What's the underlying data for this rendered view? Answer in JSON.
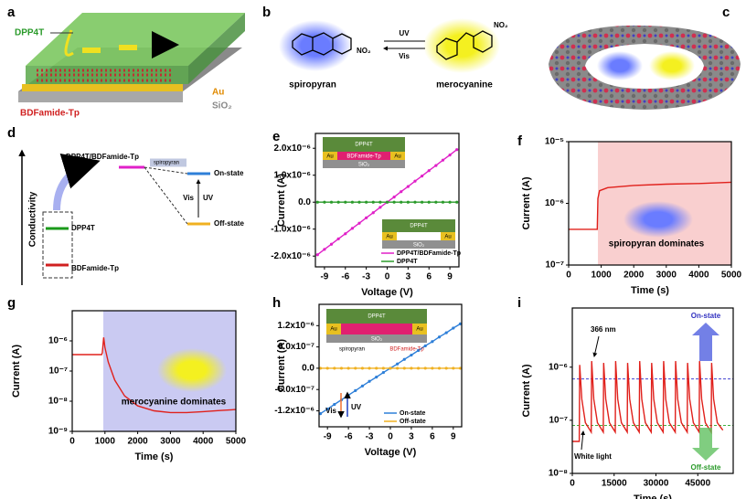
{
  "panels": {
    "a": {
      "label": "a",
      "dpp4t": "DPP4T",
      "au": "Au",
      "bdfamide": "BDFamide-Tp",
      "sio2": "SiO₂"
    },
    "b": {
      "label": "b",
      "spiropyran": "spiropyran",
      "merocyanine": "merocyanine",
      "uv": "UV",
      "vis": "Vis",
      "no2_left": "NO₂",
      "no2_right": "NO₂"
    },
    "c": {
      "label": "c"
    },
    "d": {
      "label": "d",
      "y_label": "Conductivity",
      "composite": "DPP4T/BDFamide-Tp",
      "spiropyran": "spiropyran",
      "on": "On-state",
      "off": "Off-state",
      "vis": "Vis",
      "uv": "UV",
      "dpp4t": "DPP4T",
      "bdfamide": "BDFamide-Tp"
    }
  },
  "chart_data": [
    {
      "panel_label": "e",
      "type": "line",
      "xlabel": "Voltage (V)",
      "ylabel": "Current (A)",
      "xlim": [
        -10.3,
        10.3
      ],
      "xticks": [
        -9,
        -6,
        -3,
        0,
        3,
        6,
        9
      ],
      "ylim": [
        -2.4e-06,
        2.55e-06
      ],
      "yticks": [
        {
          "value": -2e-06,
          "label": "-2.0x10⁻⁶"
        },
        {
          "value": -1e-06,
          "label": "-1.0x10⁻⁶"
        },
        {
          "value": 0,
          "label": "0.0"
        },
        {
          "value": 1e-06,
          "label": "1.0x10⁻⁶"
        },
        {
          "value": 2e-06,
          "label": "2.0x10⁻⁶"
        }
      ],
      "x": [
        -10,
        -9,
        -8,
        -7,
        -6,
        -5,
        -4,
        -3,
        -2,
        -1,
        0,
        1,
        2,
        3,
        4,
        5,
        6,
        7,
        8,
        9,
        10
      ],
      "series": [
        {
          "name": "DPP4T/BDFamide-Tp",
          "color": "#e020c8",
          "values": [
            -1.95e-06,
            -1.75e-06,
            -1.56e-06,
            -1.36e-06,
            -1.17e-06,
            -9.7e-07,
            -7.8e-07,
            -5.8e-07,
            -3.9e-07,
            -1.9e-07,
            0,
            1.9e-07,
            3.9e-07,
            5.8e-07,
            7.8e-07,
            9.7e-07,
            1.17e-06,
            1.36e-06,
            1.56e-06,
            1.75e-06,
            1.95e-06
          ]
        },
        {
          "name": "DPP4T",
          "color": "#2a9a2a",
          "values": [
            0,
            0,
            0,
            0,
            0,
            0,
            0,
            0,
            0,
            0,
            0,
            0,
            0,
            0,
            0,
            0,
            0,
            0,
            0,
            0,
            0
          ]
        }
      ],
      "markers": true,
      "legend": "lower right",
      "inset_top": [
        "DPP4T",
        "Au",
        "BDFamide-Tp",
        "Au",
        "SiO₂"
      ],
      "inset_bottom": [
        "DPP4T",
        "Au",
        "Au",
        "SiO₂"
      ]
    },
    {
      "panel_label": "f",
      "type": "line",
      "xlabel": "Time (s)",
      "ylabel": "Current (A)",
      "log_y": true,
      "xlim": [
        0,
        5000
      ],
      "xticks": [
        0,
        1000,
        2000,
        3000,
        4000,
        5000
      ],
      "ylim": [
        1e-07,
        1e-05
      ],
      "yticks": [
        {
          "value": 1e-07,
          "label": "10⁻⁷"
        },
        {
          "value": 1e-06,
          "label": "10⁻⁶"
        },
        {
          "value": 1e-05,
          "label": "10⁻⁵"
        }
      ],
      "x": [
        0,
        880,
        900,
        950,
        1200,
        2000,
        3000,
        4000,
        5000
      ],
      "series": [
        {
          "name": "current",
          "color": "#e0201b",
          "values": [
            3.8e-07,
            3.8e-07,
            1.2e-06,
            1.6e-06,
            1.8e-06,
            1.95e-06,
            2.05e-06,
            2.1e-06,
            2.2e-06
          ]
        }
      ],
      "shade": {
        "x": [
          900,
          5000
        ],
        "color": "#f9cfcf"
      },
      "annotation": "spiropyran dominates"
    },
    {
      "panel_label": "g",
      "type": "line",
      "xlabel": "Time (s)",
      "ylabel": "Current (A)",
      "log_y": true,
      "xlim": [
        0,
        5000
      ],
      "xticks": [
        0,
        1000,
        2000,
        3000,
        4000,
        5000
      ],
      "ylim": [
        1e-09,
        1e-05
      ],
      "yticks": [
        {
          "value": 1e-09,
          "label": "10⁻⁹"
        },
        {
          "value": 1e-08,
          "label": "10⁻⁸"
        },
        {
          "value": 1e-07,
          "label": "10⁻⁷"
        },
        {
          "value": 1e-06,
          "label": "10⁻⁶"
        }
      ],
      "x": [
        0,
        900,
        920,
        960,
        1000,
        1100,
        1300,
        1600,
        2000,
        2500,
        3000,
        3500,
        4000,
        4500,
        5000
      ],
      "series": [
        {
          "name": "current",
          "color": "#e0201b",
          "values": [
            3.5e-07,
            3.5e-07,
            4e-07,
            1.3e-06,
            6e-07,
            2e-07,
            5e-08,
            1.5e-08,
            7e-09,
            4.8e-09,
            4.2e-09,
            4.2e-09,
            4.5e-09,
            4.9e-09,
            5.3e-09
          ]
        }
      ],
      "shade": {
        "x": [
          950,
          5000
        ],
        "color": "#cacaf2"
      },
      "annotation": "merocyanine dominates"
    },
    {
      "panel_label": "h",
      "type": "line",
      "xlabel": "Voltage (V)",
      "ylabel": "Current (A)",
      "xlim": [
        -10.2,
        10.2
      ],
      "xticks": [
        -9,
        -6,
        -3,
        0,
        3,
        6,
        9
      ],
      "ylim": [
        -1.65e-06,
        1.8e-06
      ],
      "yticks": [
        {
          "value": -1.2e-06,
          "label": "-1.2x10⁻⁶"
        },
        {
          "value": -6e-07,
          "label": "-6.0x10⁻⁷"
        },
        {
          "value": 0,
          "label": "0.0"
        },
        {
          "value": 6e-07,
          "label": "6.0x10⁻⁷"
        },
        {
          "value": 1.2e-06,
          "label": "1.2x10⁻⁶"
        }
      ],
      "x": [
        -10,
        -9,
        -8,
        -7,
        -6,
        -5,
        -4,
        -3,
        -2,
        -1,
        0,
        1,
        2,
        3,
        4,
        5,
        6,
        7,
        8,
        9,
        10
      ],
      "series": [
        {
          "name": "On-state",
          "color": "#2e7fd8",
          "values": [
            -1.28e-06,
            -1.15e-06,
            -1.02e-06,
            -8.9e-07,
            -7.6e-07,
            -6.3e-07,
            -5e-07,
            -3.7e-07,
            -2.5e-07,
            -1.2e-07,
            0,
            1.2e-07,
            2.5e-07,
            3.7e-07,
            5e-07,
            6.3e-07,
            7.5e-07,
            8.8e-07,
            1e-06,
            1.13e-06,
            1.25e-06
          ]
        },
        {
          "name": "Off-state",
          "color": "#f0b020",
          "values": [
            0,
            0,
            0,
            0,
            0,
            0,
            0,
            0,
            0,
            0,
            0,
            0,
            0,
            0,
            0,
            0,
            0,
            0,
            0,
            0,
            0
          ]
        }
      ],
      "markers": true,
      "legend": "lower right",
      "inset": [
        "DPP4T",
        "Au",
        "Au",
        "SiO₂",
        "spiropyran",
        "BDFamide-Tp"
      ],
      "arrows": [
        "Vis",
        "UV"
      ]
    },
    {
      "panel_label": "i",
      "type": "line",
      "xlabel": "Time (s)",
      "ylabel": "Current (A)",
      "log_y": true,
      "xlim": [
        0,
        57700
      ],
      "xticks": [
        0,
        15000,
        30000,
        45000
      ],
      "ylim": [
        1e-08,
        1.3e-05
      ],
      "yticks": [
        {
          "value": 1e-08,
          "label": "10⁻⁸"
        },
        {
          "value": 1e-07,
          "label": "10⁻⁷"
        },
        {
          "value": 1e-06,
          "label": "10⁻⁶"
        }
      ],
      "x": [
        0,
        2500,
        2650,
        3400,
        4700,
        6800,
        6950,
        7700,
        9000,
        11100,
        11250,
        12000,
        13300,
        15400,
        15550,
        16300,
        17600,
        19700,
        19850,
        20600,
        21900,
        24000,
        24150,
        24900,
        26200,
        28300,
        28450,
        29200,
        30500,
        32600,
        32750,
        33500,
        34800,
        36900,
        37050,
        37800,
        39100,
        41200,
        41350,
        42100,
        43400,
        45500,
        45650,
        46400,
        47700,
        49800,
        49950,
        50700,
        52000,
        54000
      ],
      "series": [
        {
          "name": "current",
          "color": "#e0201b",
          "values": [
            4e-08,
            4e-08,
            1.1e-06,
            2.5e-07,
            9e-08,
            6e-08,
            1.3e-06,
            2.5e-07,
            9e-08,
            6e-08,
            1.2e-06,
            2.5e-07,
            9e-08,
            6e-08,
            1.3e-06,
            2.5e-07,
            9e-08,
            6e-08,
            1.2e-06,
            2.5e-07,
            9e-08,
            6e-08,
            1.3e-06,
            2.5e-07,
            9e-08,
            6e-08,
            1.2e-06,
            2.5e-07,
            9e-08,
            6e-08,
            1.3e-06,
            2.5e-07,
            9e-08,
            6e-08,
            1.3e-06,
            2.5e-07,
            9e-08,
            6e-08,
            1.2e-06,
            2.5e-07,
            9e-08,
            6e-08,
            1.3e-06,
            2.5e-07,
            9e-08,
            6e-08,
            1.2e-06,
            2.5e-07,
            9e-08,
            6.5e-08
          ]
        }
      ],
      "hlines": [
        {
          "value": 6e-07,
          "color": "#4040d0"
        },
        {
          "value": 8e-08,
          "color": "#40b040"
        }
      ],
      "notes": [
        "366 nm",
        "White light",
        "On-state",
        "Off-state"
      ]
    }
  ]
}
